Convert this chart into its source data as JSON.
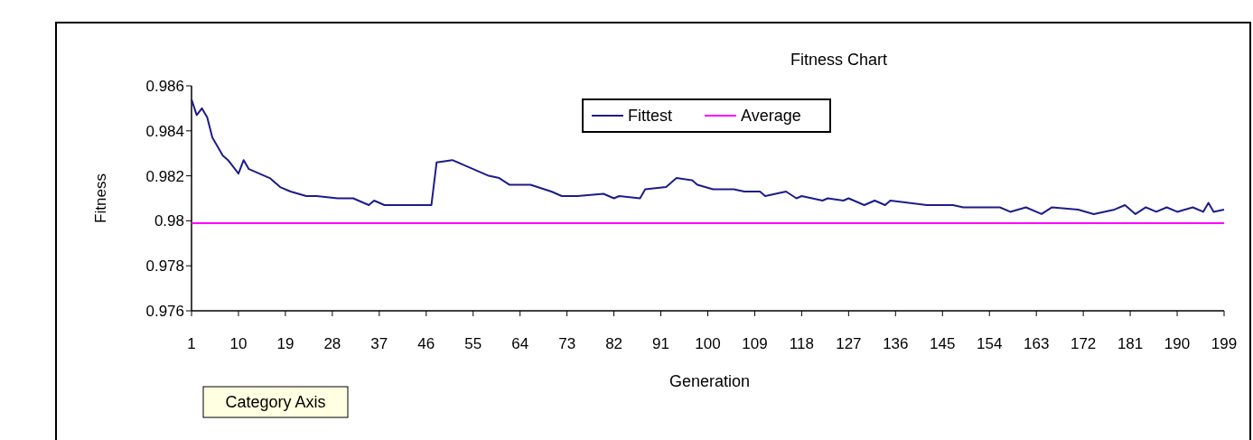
{
  "chart_data": {
    "type": "line",
    "title": "Fitness Chart",
    "xlabel": "Generation",
    "ylabel": "Fitness",
    "xlim": [
      1,
      199
    ],
    "xticks": [
      1,
      10,
      19,
      28,
      37,
      46,
      55,
      64,
      73,
      82,
      91,
      100,
      109,
      118,
      127,
      136,
      145,
      154,
      163,
      172,
      181,
      190,
      199
    ],
    "ylim": [
      0.976,
      0.986
    ],
    "yticks": [
      0.976,
      0.978,
      0.98,
      0.982,
      0.984,
      0.986
    ],
    "grid": false,
    "legend": "top",
    "marker": "none",
    "line_style": "solid",
    "annotations": [
      "Category Axis"
    ],
    "series": [
      {
        "name": "Fittest",
        "color": "#1c1c8c",
        "x": [
          1,
          2,
          3,
          4,
          5,
          7,
          8,
          10,
          11,
          12,
          16,
          18,
          20,
          23,
          25,
          29,
          32,
          35,
          36,
          38,
          44,
          47,
          48,
          51,
          53,
          58,
          60,
          62,
          66,
          70,
          72,
          75,
          80,
          82,
          83,
          87,
          88,
          92,
          93,
          94,
          97,
          98,
          101,
          105,
          107,
          110,
          111,
          115,
          117,
          118,
          122,
          123,
          126,
          127,
          130,
          132,
          134,
          135,
          142,
          147,
          149,
          152,
          156,
          158,
          161,
          164,
          166,
          171,
          174,
          178,
          180,
          182,
          184,
          186,
          188,
          190,
          193,
          195,
          196,
          197,
          199
        ],
        "values": [
          0.9854,
          0.9847,
          0.985,
          0.9846,
          0.9837,
          0.9829,
          0.9827,
          0.9821,
          0.9827,
          0.9823,
          0.9819,
          0.9815,
          0.9813,
          0.9811,
          0.9811,
          0.981,
          0.981,
          0.9807,
          0.9809,
          0.9807,
          0.9807,
          0.9807,
          0.9826,
          0.9827,
          0.9825,
          0.982,
          0.9819,
          0.9816,
          0.9816,
          0.9813,
          0.9811,
          0.9811,
          0.9812,
          0.981,
          0.9811,
          0.981,
          0.9814,
          0.9815,
          0.9817,
          0.9819,
          0.9818,
          0.9816,
          0.9814,
          0.9814,
          0.9813,
          0.9813,
          0.9811,
          0.9813,
          0.981,
          0.9811,
          0.9809,
          0.981,
          0.9809,
          0.981,
          0.9807,
          0.9809,
          0.9807,
          0.9809,
          0.9807,
          0.9807,
          0.9806,
          0.9806,
          0.9806,
          0.9804,
          0.9806,
          0.9803,
          0.9806,
          0.9805,
          0.9803,
          0.9805,
          0.9807,
          0.9803,
          0.9806,
          0.9804,
          0.9806,
          0.9804,
          0.9806,
          0.9804,
          0.9808,
          0.9804,
          0.9805
        ]
      },
      {
        "name": "Average",
        "color": "#ff00ff",
        "x": [
          1,
          199
        ],
        "values": [
          0.9799,
          0.9799
        ]
      }
    ]
  }
}
